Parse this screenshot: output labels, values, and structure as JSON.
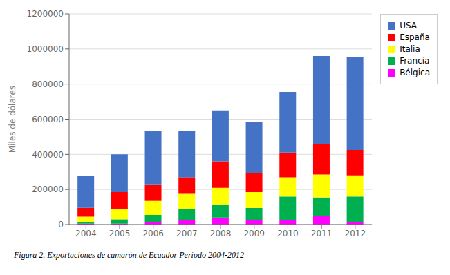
{
  "chart_data": {
    "type": "bar",
    "stacked": true,
    "ylabel": "Miles de dólares",
    "caption": "Figura 2. Exportaciones de camarón de Ecuador Período 2004-2012",
    "categories": [
      "2004",
      "2005",
      "2006",
      "2007",
      "2008",
      "2009",
      "2010",
      "2011",
      "2012"
    ],
    "series": [
      {
        "name": "Bélgica",
        "color": "#FF00FF",
        "values": [
          5000,
          5000,
          15000,
          25000,
          40000,
          25000,
          25000,
          50000,
          15000
        ]
      },
      {
        "name": "Francia",
        "color": "#00B050",
        "values": [
          10000,
          25000,
          40000,
          65000,
          75000,
          70000,
          135000,
          105000,
          145000
        ]
      },
      {
        "name": "Italia",
        "color": "#FFFF00",
        "values": [
          30000,
          60000,
          80000,
          85000,
          95000,
          90000,
          110000,
          130000,
          120000
        ]
      },
      {
        "name": "España",
        "color": "#FF0000",
        "values": [
          50000,
          95000,
          90000,
          95000,
          150000,
          110000,
          140000,
          175000,
          145000
        ]
      },
      {
        "name": "USA",
        "color": "#4472C4",
        "values": [
          180000,
          215000,
          310000,
          265000,
          290000,
          290000,
          345000,
          500000,
          530000
        ]
      }
    ],
    "ylim": [
      0,
      1200000
    ],
    "yticks": [
      0,
      200000,
      400000,
      600000,
      800000,
      1000000,
      1200000
    ],
    "grid": true,
    "legend": "upper right"
  }
}
